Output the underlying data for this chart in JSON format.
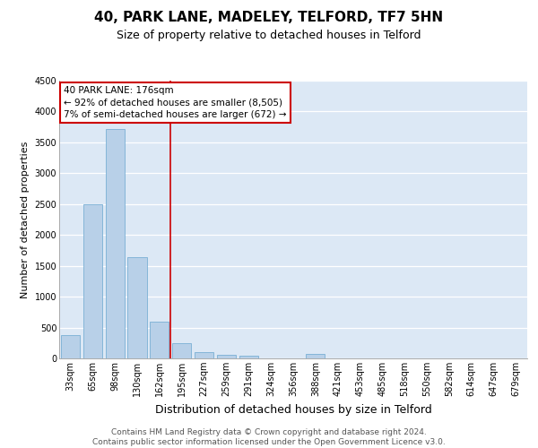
{
  "title1": "40, PARK LANE, MADELEY, TELFORD, TF7 5HN",
  "title2": "Size of property relative to detached houses in Telford",
  "xlabel": "Distribution of detached houses by size in Telford",
  "ylabel": "Number of detached properties",
  "categories": [
    "33sqm",
    "65sqm",
    "98sqm",
    "130sqm",
    "162sqm",
    "195sqm",
    "227sqm",
    "259sqm",
    "291sqm",
    "324sqm",
    "356sqm",
    "388sqm",
    "421sqm",
    "453sqm",
    "485sqm",
    "518sqm",
    "550sqm",
    "582sqm",
    "614sqm",
    "647sqm",
    "679sqm"
  ],
  "values": [
    380,
    2500,
    3720,
    1640,
    600,
    240,
    105,
    60,
    40,
    0,
    0,
    70,
    0,
    0,
    0,
    0,
    0,
    0,
    0,
    0,
    0
  ],
  "bar_color": "#b8d0e8",
  "bar_edge_color": "#7aafd4",
  "vline_x": 4.5,
  "vline_color": "#cc0000",
  "annotation_text": "40 PARK LANE: 176sqm\n← 92% of detached houses are smaller (8,505)\n7% of semi-detached houses are larger (672) →",
  "annotation_box_color": "#ffffff",
  "annotation_box_edge": "#cc0000",
  "ylim": [
    0,
    4500
  ],
  "yticks": [
    0,
    500,
    1000,
    1500,
    2000,
    2500,
    3000,
    3500,
    4000,
    4500
  ],
  "bg_color": "#dce8f5",
  "footer_text": "Contains HM Land Registry data © Crown copyright and database right 2024.\nContains public sector information licensed under the Open Government Licence v3.0.",
  "title1_fontsize": 11,
  "title2_fontsize": 9,
  "xlabel_fontsize": 9,
  "ylabel_fontsize": 8,
  "tick_fontsize": 7,
  "footer_fontsize": 6.5
}
